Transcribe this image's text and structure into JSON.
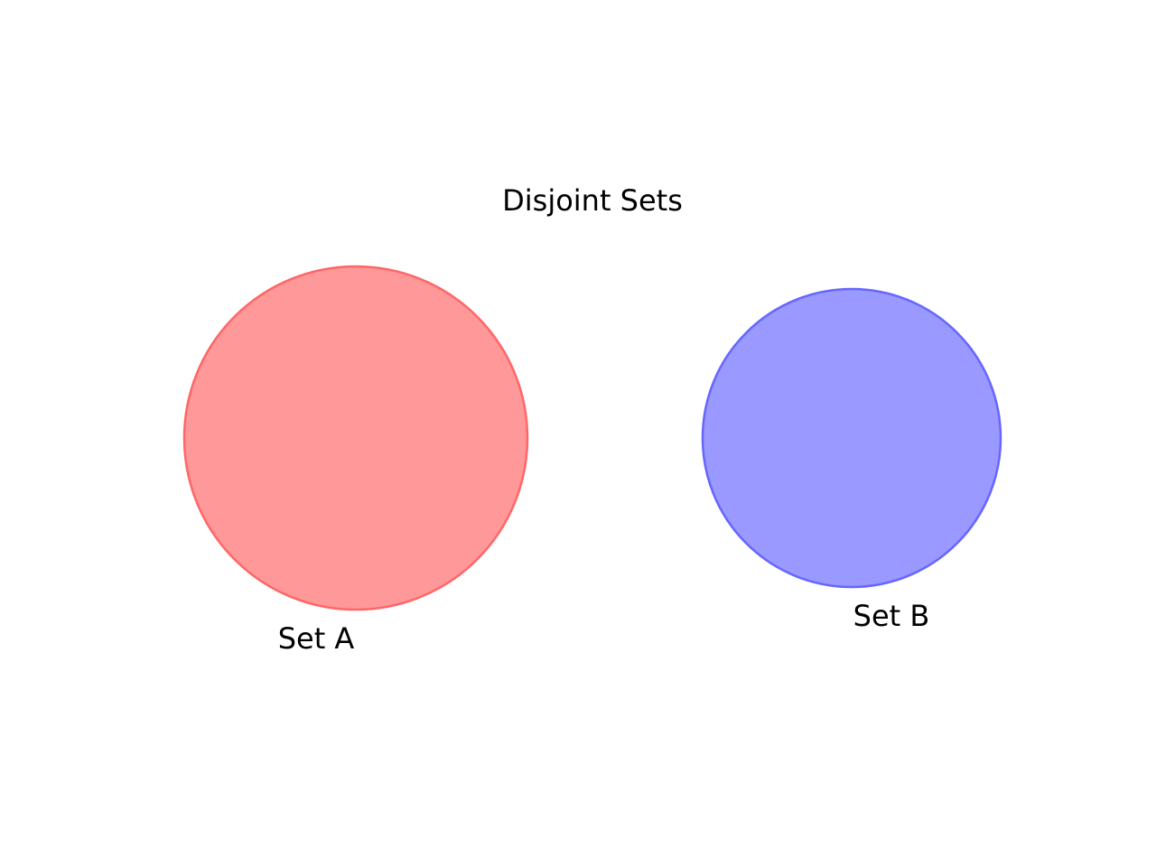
{
  "diagram": {
    "title": "Disjoint Sets",
    "sets": [
      {
        "label": "Set A",
        "fill": "#ff9899",
        "stroke": "#ff6666"
      },
      {
        "label": "Set B",
        "fill": "#9999ff",
        "stroke": "#6666ff"
      }
    ]
  }
}
